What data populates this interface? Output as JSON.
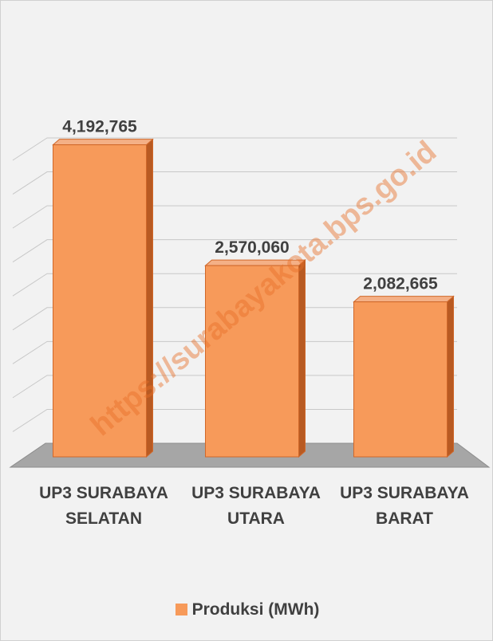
{
  "chart_data": {
    "type": "bar3d",
    "categories": [
      "UP3 SURABAYA SELATAN",
      "UP3 SURABAYA UTARA",
      "UP3 SURABAYA BARAT"
    ],
    "series": [
      {
        "name": "Produksi (MWh)",
        "color": "#f79a5a",
        "values": [
          4192765,
          2570060,
          2082665
        ],
        "value_labels": [
          "4,192,765",
          "2,570,060",
          "2,082,665"
        ]
      }
    ],
    "ylim": [
      0,
      4500000
    ],
    "yticks": [
      0,
      500000,
      1000000,
      1500000,
      2000000,
      2500000,
      3000000,
      3500000,
      4000000,
      4500000
    ],
    "grid": true,
    "legend": "bottom",
    "watermark": "https://surabayakota.bps.go.id"
  }
}
